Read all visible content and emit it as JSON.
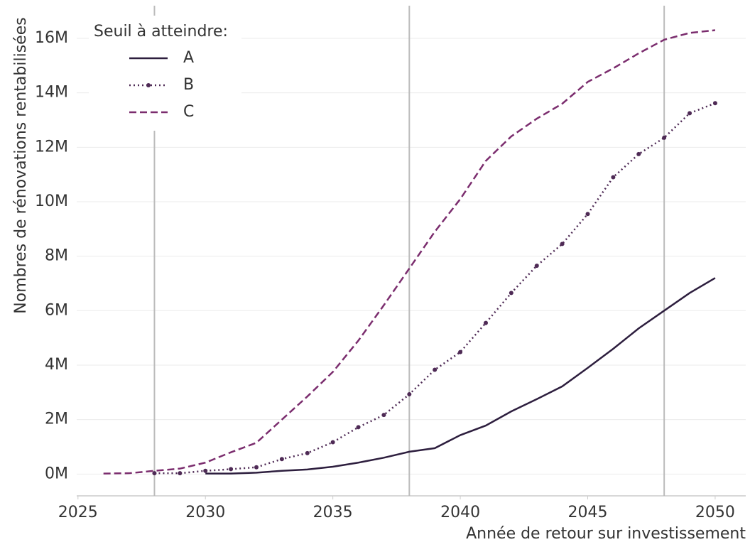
{
  "chart_data": {
    "type": "line",
    "x_label": "Année de retour sur investissement",
    "y_label": "Nombres de rénovations rentabilisées",
    "legend_title": "Seuil à atteindre:",
    "legend": "upper left",
    "x": [
      2026,
      2027,
      2028,
      2029,
      2030,
      2031,
      2032,
      2033,
      2034,
      2035,
      2036,
      2037,
      2038,
      2039,
      2040,
      2041,
      2042,
      2043,
      2044,
      2045,
      2046,
      2047,
      2048,
      2049,
      2050
    ],
    "series": [
      {
        "name": "A",
        "color": "#2d1e3e",
        "style": "solid",
        "marker": false,
        "values": [
          null,
          null,
          null,
          null,
          20000,
          20000,
          50000,
          120000,
          170000,
          270000,
          420000,
          600000,
          820000,
          950000,
          1430000,
          1780000,
          2300000,
          2750000,
          3220000,
          3900000,
          4600000,
          5350000,
          6000000,
          6650000,
          7200000
        ]
      },
      {
        "name": "B",
        "color": "#4e2a55",
        "style": "dotted",
        "marker": true,
        "values": [
          null,
          null,
          30000,
          30000,
          120000,
          180000,
          250000,
          550000,
          770000,
          1170000,
          1720000,
          2170000,
          2930000,
          3830000,
          4480000,
          5550000,
          6650000,
          7650000,
          8450000,
          9550000,
          10900000,
          11750000,
          12350000,
          13250000,
          13620000
        ]
      },
      {
        "name": "C",
        "color": "#7b2d6e",
        "style": "dashed",
        "marker": false,
        "values": [
          20000,
          30000,
          120000,
          200000,
          420000,
          800000,
          1150000,
          2000000,
          2850000,
          3750000,
          4900000,
          6200000,
          7550000,
          8900000,
          10100000,
          11500000,
          12400000,
          13050000,
          13600000,
          14400000,
          14900000,
          15450000,
          15950000,
          16200000,
          16300000
        ]
      }
    ],
    "xlim": [
      2024.95,
      2051.2
    ],
    "xticks": [
      2025,
      2030,
      2035,
      2040,
      2045,
      2050
    ],
    "ylim": [
      -800000,
      17200000
    ],
    "yticks": [
      {
        "value": 0,
        "label": "0M"
      },
      {
        "value": 2000000,
        "label": "2M"
      },
      {
        "value": 4000000,
        "label": "4M"
      },
      {
        "value": 6000000,
        "label": "6M"
      },
      {
        "value": 8000000,
        "label": "8M"
      },
      {
        "value": 10000000,
        "label": "10M"
      },
      {
        "value": 12000000,
        "label": "12M"
      },
      {
        "value": 14000000,
        "label": "14M"
      },
      {
        "value": 16000000,
        "label": "16M"
      }
    ],
    "vlines": [
      2028,
      2038,
      2048
    ],
    "grid": true
  }
}
